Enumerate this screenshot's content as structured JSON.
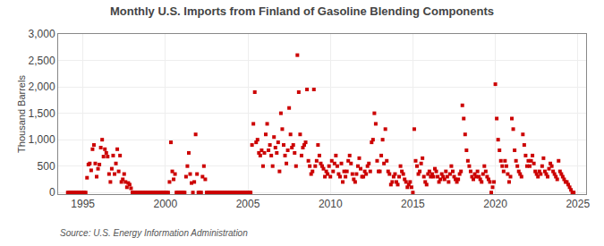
{
  "chart_data": {
    "type": "scatter",
    "title": "Monthly U.S. Imports from Finland of Gasoline Blending Components",
    "ylabel": "Thousand Barrels",
    "annotations": [
      "Source: U.S. Energy Information Administration"
    ],
    "color": "#cc0000",
    "marker": "square",
    "grid": true,
    "xlim": [
      1993.5,
      2025.5
    ],
    "ylim": [
      -30,
      3000
    ],
    "xticks": [
      1995,
      2000,
      2005,
      2010,
      2015,
      2020,
      2025
    ],
    "yticks": [
      0,
      500,
      {
        "value": 1000,
        "label": "1,000"
      },
      {
        "value": 1500,
        "label": "1,500"
      },
      {
        "value": 2000,
        "label": "2,000"
      },
      {
        "value": 2500,
        "label": "2,500"
      },
      {
        "value": 3000,
        "label": "3,000"
      }
    ],
    "x": [
      1994.083,
      1994.167,
      1994.25,
      1994.333,
      1994.417,
      1994.5,
      1994.583,
      1994.667,
      1994.75,
      1994.833,
      1994.917,
      1995.0,
      1995.083,
      1995.167,
      1995.25,
      1995.333,
      1995.417,
      1995.5,
      1995.583,
      1995.667,
      1995.75,
      1995.833,
      1995.917,
      1996.0,
      1996.083,
      1996.167,
      1996.25,
      1996.333,
      1996.417,
      1996.5,
      1996.583,
      1996.667,
      1996.75,
      1996.833,
      1996.917,
      1997.0,
      1997.083,
      1997.167,
      1997.25,
      1997.333,
      1997.417,
      1997.5,
      1997.583,
      1997.667,
      1997.75,
      1997.833,
      1997.917,
      1998.0,
      1998.083,
      1998.167,
      1998.25,
      1998.333,
      1998.417,
      1998.5,
      1998.583,
      1998.667,
      1998.75,
      1998.833,
      1998.917,
      1999.0,
      1999.083,
      1999.167,
      1999.25,
      1999.333,
      1999.417,
      1999.5,
      1999.583,
      1999.667,
      1999.75,
      1999.833,
      1999.917,
      2000.0,
      2000.083,
      2000.167,
      2000.25,
      2000.333,
      2000.417,
      2000.5,
      2000.583,
      2000.667,
      2000.75,
      2000.833,
      2000.917,
      2001.0,
      2001.083,
      2001.167,
      2001.25,
      2001.333,
      2001.417,
      2001.5,
      2001.583,
      2001.667,
      2001.75,
      2001.833,
      2001.917,
      2002.0,
      2002.083,
      2002.167,
      2002.25,
      2002.333,
      2002.417,
      2002.5,
      2002.583,
      2002.667,
      2002.75,
      2002.833,
      2002.917,
      2003.0,
      2003.083,
      2003.167,
      2003.25,
      2003.333,
      2003.417,
      2003.5,
      2003.583,
      2003.667,
      2003.75,
      2003.833,
      2003.917,
      2004.0,
      2004.083,
      2004.167,
      2004.25,
      2004.333,
      2004.417,
      2004.5,
      2004.583,
      2004.667,
      2004.75,
      2004.833,
      2004.917,
      2005.0,
      2005.083,
      2005.167,
      2005.25,
      2005.333,
      2005.417,
      2005.5,
      2005.583,
      2005.667,
      2005.75,
      2005.833,
      2005.917,
      2006.0,
      2006.083,
      2006.167,
      2006.25,
      2006.333,
      2006.417,
      2006.5,
      2006.583,
      2006.667,
      2006.75,
      2006.833,
      2006.917,
      2007.0,
      2007.083,
      2007.167,
      2007.25,
      2007.333,
      2007.417,
      2007.5,
      2007.583,
      2007.667,
      2007.75,
      2007.833,
      2007.917,
      2008.0,
      2008.083,
      2008.167,
      2008.25,
      2008.333,
      2008.417,
      2008.5,
      2008.583,
      2008.667,
      2008.75,
      2008.833,
      2008.917,
      2009.0,
      2009.083,
      2009.167,
      2009.25,
      2009.333,
      2009.417,
      2009.5,
      2009.583,
      2009.667,
      2009.75,
      2009.833,
      2009.917,
      2010.0,
      2010.083,
      2010.167,
      2010.25,
      2010.333,
      2010.417,
      2010.5,
      2010.583,
      2010.667,
      2010.75,
      2010.833,
      2010.917,
      2011.0,
      2011.083,
      2011.167,
      2011.25,
      2011.333,
      2011.417,
      2011.5,
      2011.583,
      2011.667,
      2011.75,
      2011.833,
      2011.917,
      2012.0,
      2012.083,
      2012.167,
      2012.25,
      2012.333,
      2012.417,
      2012.5,
      2012.583,
      2012.667,
      2012.75,
      2012.833,
      2012.917,
      2013.0,
      2013.083,
      2013.167,
      2013.25,
      2013.333,
      2013.417,
      2013.5,
      2013.583,
      2013.667,
      2013.75,
      2013.833,
      2013.917,
      2014.0,
      2014.083,
      2014.167,
      2014.25,
      2014.333,
      2014.417,
      2014.5,
      2014.583,
      2014.667,
      2014.75,
      2014.833,
      2014.917,
      2015.0,
      2015.083,
      2015.167,
      2015.25,
      2015.333,
      2015.417,
      2015.5,
      2015.583,
      2015.667,
      2015.75,
      2015.833,
      2015.917,
      2016.0,
      2016.083,
      2016.167,
      2016.25,
      2016.333,
      2016.417,
      2016.5,
      2016.583,
      2016.667,
      2016.75,
      2016.833,
      2016.917,
      2017.0,
      2017.083,
      2017.167,
      2017.25,
      2017.333,
      2017.417,
      2017.5,
      2017.583,
      2017.667,
      2017.75,
      2017.833,
      2017.917,
      2018.0,
      2018.083,
      2018.167,
      2018.25,
      2018.333,
      2018.417,
      2018.5,
      2018.583,
      2018.667,
      2018.75,
      2018.833,
      2018.917,
      2019.0,
      2019.083,
      2019.167,
      2019.25,
      2019.333,
      2019.417,
      2019.5,
      2019.583,
      2019.667,
      2019.75,
      2019.833,
      2019.917,
      2020.0,
      2020.083,
      2020.167,
      2020.25,
      2020.333,
      2020.417,
      2020.5,
      2020.583,
      2020.667,
      2020.75,
      2020.833,
      2020.917,
      2021.0,
      2021.083,
      2021.167,
      2021.25,
      2021.333,
      2021.417,
      2021.5,
      2021.583,
      2021.667,
      2021.75,
      2021.833,
      2021.917,
      2022.0,
      2022.083,
      2022.167,
      2022.25,
      2022.333,
      2022.417,
      2022.5,
      2022.583,
      2022.667,
      2022.75,
      2022.833,
      2022.917,
      2023.0,
      2023.083,
      2023.167,
      2023.25,
      2023.333,
      2023.417,
      2023.5,
      2023.583,
      2023.667,
      2023.75,
      2023.833,
      2023.917,
      2024.0,
      2024.083,
      2024.167,
      2024.25,
      2024.333,
      2024.417,
      2024.5,
      2024.583,
      2024.667,
      2024.75
    ],
    "values": [
      0,
      0,
      0,
      0,
      0,
      0,
      0,
      0,
      0,
      0,
      0,
      0,
      0,
      0,
      280,
      530,
      550,
      420,
      820,
      900,
      550,
      300,
      450,
      530,
      850,
      1000,
      680,
      820,
      750,
      680,
      350,
      200,
      450,
      700,
      350,
      550,
      820,
      400,
      700,
      200,
      250,
      350,
      200,
      100,
      180,
      150,
      80,
      0,
      0,
      0,
      0,
      0,
      0,
      0,
      0,
      0,
      0,
      0,
      0,
      0,
      0,
      0,
      0,
      0,
      0,
      0,
      0,
      0,
      0,
      0,
      0,
      0,
      0,
      0,
      200,
      950,
      400,
      250,
      350,
      0,
      0,
      0,
      0,
      0,
      0,
      0,
      300,
      500,
      750,
      350,
      180,
      0,
      200,
      1100,
      350,
      0,
      0,
      0,
      300,
      500,
      250,
      0,
      0,
      0,
      0,
      0,
      0,
      0,
      0,
      0,
      0,
      0,
      0,
      0,
      0,
      0,
      0,
      0,
      0,
      0,
      0,
      0,
      0,
      0,
      0,
      0,
      0,
      0,
      0,
      0,
      0,
      0,
      0,
      0,
      900,
      1300,
      1900,
      950,
      1000,
      750,
      700,
      800,
      500,
      750,
      1100,
      1300,
      800,
      900,
      700,
      500,
      1050,
      850,
      750,
      950,
      400,
      1500,
      1200,
      900,
      700,
      550,
      800,
      1600,
      1100,
      850,
      900,
      750,
      500,
      2600,
      1900,
      1100,
      700,
      850,
      900,
      950,
      1950,
      600,
      500,
      350,
      400,
      1950,
      500,
      600,
      900,
      700,
      550,
      500,
      450,
      300,
      400,
      350,
      500,
      300,
      600,
      400,
      550,
      700,
      500,
      350,
      300,
      550,
      200,
      400,
      300,
      400,
      600,
      700,
      550,
      350,
      250,
      200,
      350,
      500,
      650,
      450,
      300,
      300,
      400,
      350,
      500,
      550,
      400,
      950,
      1000,
      1500,
      1300,
      600,
      400,
      400,
      700,
      1000,
      550,
      1200,
      600,
      400,
      350,
      150,
      200,
      300,
      350,
      200,
      150,
      300,
      500,
      400,
      350,
      250,
      200,
      100,
      150,
      200,
      100,
      0,
      1200,
      600,
      500,
      350,
      400,
      550,
      650,
      300,
      200,
      150,
      350,
      400,
      300,
      350,
      300,
      450,
      400,
      300,
      200,
      250,
      350,
      300,
      250,
      400,
      300,
      200,
      350,
      500,
      400,
      300,
      250,
      200,
      250,
      350,
      400,
      1650,
      1400,
      1100,
      800,
      600,
      500,
      400,
      300,
      250,
      350,
      300,
      400,
      300,
      250,
      200,
      350,
      500,
      400,
      300,
      250,
      200,
      0,
      100,
      200,
      2050,
      1400,
      1000,
      800,
      600,
      500,
      400,
      600,
      500,
      350,
      200,
      300,
      1400,
      1200,
      800,
      600,
      500,
      400,
      350,
      300,
      1100,
      900,
      700,
      500,
      600,
      500,
      600,
      700,
      550,
      400,
      350,
      300,
      400,
      350,
      500,
      650,
      400,
      350,
      300,
      450,
      550,
      500,
      400,
      350,
      300,
      250,
      600,
      400,
      350,
      300,
      250,
      200,
      200,
      150,
      100,
      50,
      0,
      0
    ]
  }
}
